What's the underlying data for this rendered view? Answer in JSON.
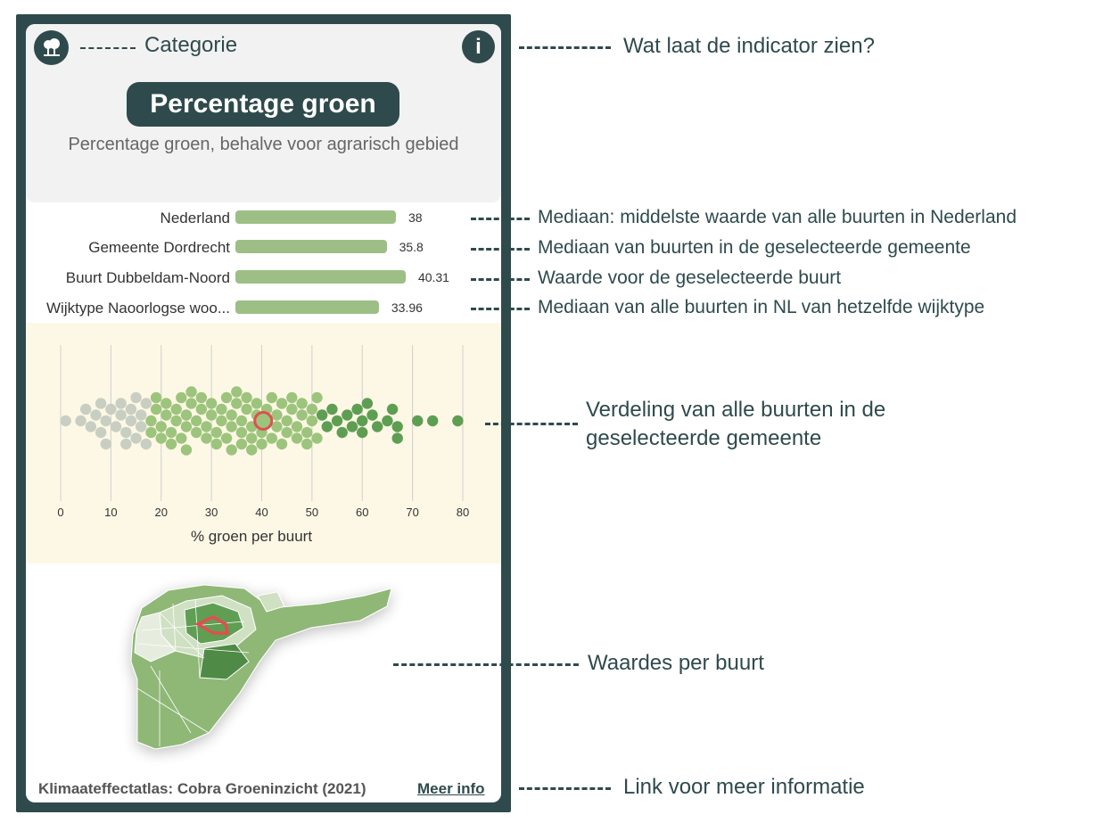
{
  "header": {
    "category_label": "Categorie",
    "category_icon": "tree-icon",
    "info_icon_label": "i",
    "title": "Percentage groen",
    "subtitle": "Percentage groen, behalve voor agrarisch gebied"
  },
  "comparisons": [
    {
      "label": "Nederland",
      "value": 38,
      "value_text": "38"
    },
    {
      "label": "Gemeente Dordrecht",
      "value": 35.8,
      "value_text": "35.8"
    },
    {
      "label": "Buurt Dubbeldam-Noord",
      "value": 40.31,
      "value_text": "40.31"
    },
    {
      "label": "Wijktype Naoorlogse woo...",
      "value": 33.96,
      "value_text": "33.96"
    }
  ],
  "chart_data": {
    "type": "scatter",
    "xlabel": "% groen per buurt",
    "ylabel": "",
    "xlim": [
      0,
      80
    ],
    "xticks": [
      "0",
      "10",
      "20",
      "30",
      "40",
      "50",
      "60",
      "70",
      "80"
    ],
    "grid": true,
    "highlight": {
      "label": "Buurt Dubbeldam-Noord",
      "x": 40.31
    },
    "values": [
      1,
      4,
      5,
      6,
      7,
      8,
      8,
      9,
      9,
      10,
      11,
      12,
      12,
      13,
      13,
      14,
      14,
      15,
      15,
      16,
      16,
      17,
      17,
      18,
      18,
      19,
      19,
      20,
      20,
      21,
      21,
      22,
      22,
      23,
      23,
      24,
      24,
      25,
      25,
      25,
      26,
      26,
      27,
      27,
      28,
      28,
      29,
      29,
      30,
      30,
      31,
      31,
      32,
      32,
      33,
      33,
      34,
      34,
      34,
      35,
      35,
      36,
      36,
      36,
      37,
      37,
      38,
      38,
      38,
      39,
      39,
      40,
      40,
      41,
      41,
      42,
      42,
      43,
      43,
      44,
      44,
      45,
      45,
      46,
      46,
      47,
      47,
      48,
      48,
      49,
      49,
      50,
      50,
      51,
      51,
      52,
      53,
      54,
      55,
      56,
      57,
      58,
      59,
      60,
      60,
      61,
      62,
      63,
      65,
      66,
      67,
      67,
      71,
      74,
      79
    ],
    "colors": {
      "light": "#c8cfc2",
      "mid": "#9dc47c",
      "dark": "#5e9e52",
      "highlight": "#e05050"
    }
  },
  "footer": {
    "source": "Klimaateffectatlas: Cobra Groeninzicht (2021)",
    "link": "Meer info"
  },
  "annotations": {
    "info": "Wat laat de indicator zien?",
    "nl": "Mediaan: middelste waarde van alle buurten in Nederland",
    "gemeente": "Mediaan van buurten in de geselecteerde gemeente",
    "buurt": "Waarde voor de geselecteerde buurt",
    "wijktype": "Mediaan van alle buurten in NL van hetzelfde wijktype",
    "verdeling_1": "Verdeling van alle buurten in de",
    "verdeling_2": "geselecteerde gemeente",
    "waardes": "Waardes per buurt",
    "link": "Link voor meer informatie"
  },
  "map": {
    "fill": "#8fb877",
    "dark": "#4f8a47",
    "highlight": "#e05050"
  }
}
